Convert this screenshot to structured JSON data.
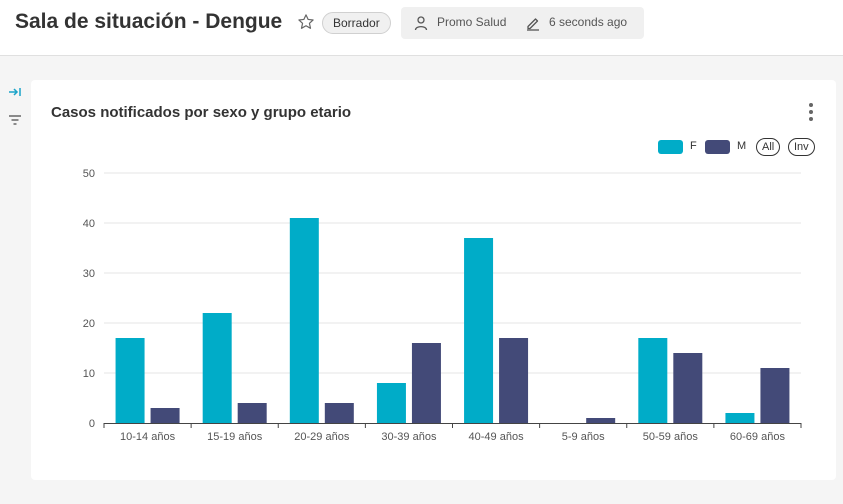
{
  "header": {
    "title": "Sala de situación - Dengue",
    "status_badge": "Borrador",
    "owner": "Promo Salud",
    "modified": "6 seconds ago"
  },
  "card": {
    "title": "Casos notificados por sexo y grupo etario"
  },
  "legend": {
    "toggle_all": "All",
    "invert": "Inv"
  },
  "colors": {
    "F": "#00acc8",
    "M": "#434a78"
  },
  "icons": [
    "star-icon",
    "user-icon",
    "edit-icon",
    "expand-icon",
    "filter-icon",
    "kebab-menu-icon"
  ],
  "chart_data": {
    "type": "bar",
    "title": "Casos notificados por sexo y grupo etario",
    "categories": [
      "10-14 años",
      "15-19 años",
      "20-29 años",
      "30-39 años",
      "40-49 años",
      "5-9 años",
      "50-59 años",
      "60-69 años"
    ],
    "series": [
      {
        "name": "F",
        "values": [
          17,
          22,
          41,
          8,
          37,
          0,
          17,
          2
        ]
      },
      {
        "name": "M",
        "values": [
          3,
          4,
          4,
          16,
          17,
          1,
          14,
          11
        ]
      }
    ],
    "ylim": [
      0,
      50
    ],
    "yticks": [
      0,
      10,
      20,
      30,
      40,
      50
    ],
    "grid": true,
    "legend_position": "top-right"
  }
}
